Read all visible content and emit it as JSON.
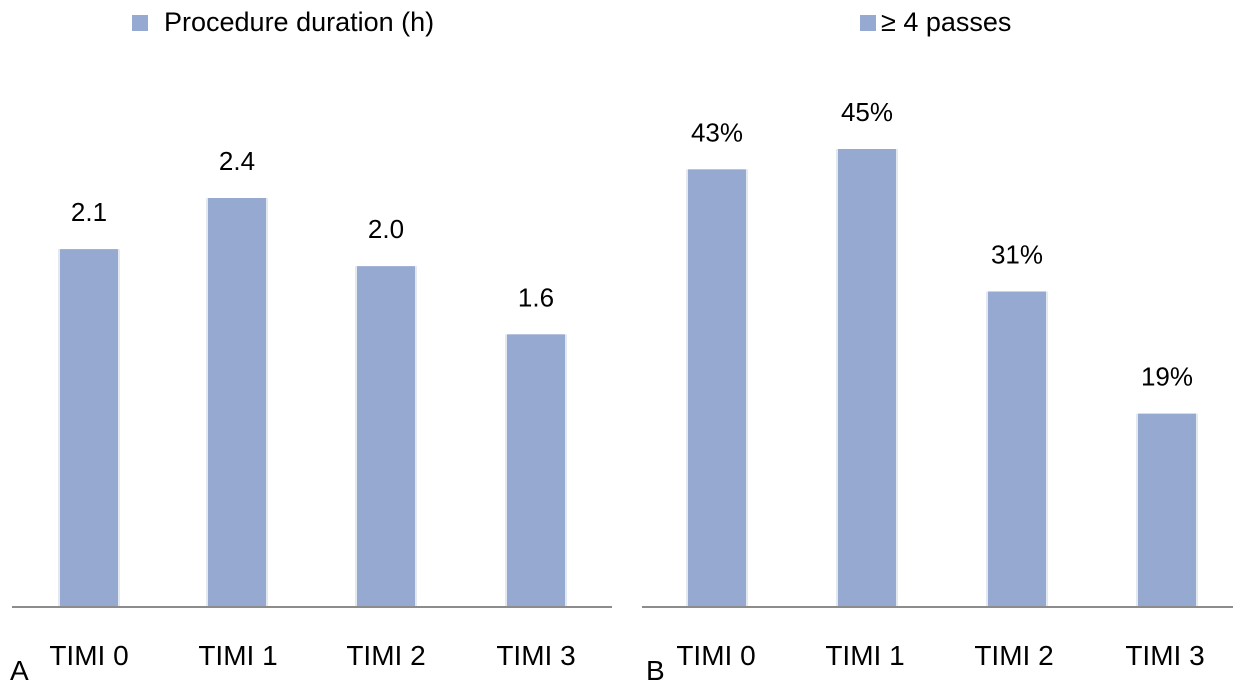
{
  "chart_data": [
    {
      "type": "bar",
      "panel_label": "A",
      "legend": "Procedure duration (h)",
      "legend_position": "top",
      "categories": [
        "TIMI 0",
        "TIMI 1",
        "TIMI 2",
        "TIMI 3"
      ],
      "values": [
        2.1,
        2.4,
        2.0,
        1.6
      ],
      "data_labels": [
        "2.1",
        "2.4",
        "2.0",
        "1.6"
      ],
      "ylim": [
        0,
        2.4
      ],
      "grid": false,
      "color": "#95a9d1"
    },
    {
      "type": "bar",
      "panel_label": "B",
      "legend": "≥ 4 passes",
      "legend_position": "top",
      "categories": [
        "TIMI 0",
        "TIMI 1",
        "TIMI 2",
        "TIMI 3"
      ],
      "values": [
        43,
        45,
        31,
        19
      ],
      "data_labels": [
        "43%",
        "45%",
        "31%",
        "19%"
      ],
      "ylim": [
        0,
        45
      ],
      "grid": false,
      "color": "#95a9d1"
    }
  ],
  "colors": {
    "bar": "#95a9d1",
    "axis": "#8c8c8c"
  }
}
